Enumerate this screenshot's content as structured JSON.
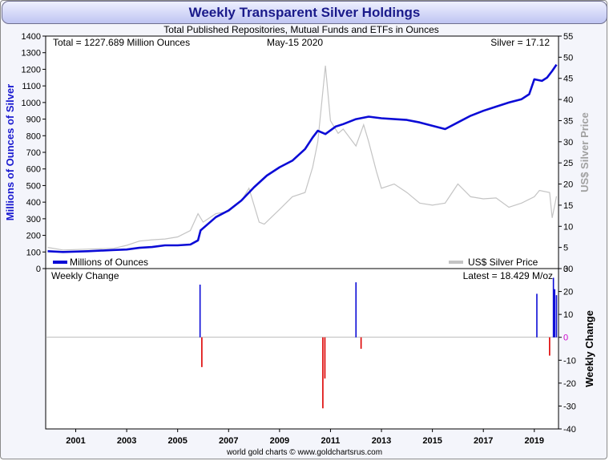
{
  "chart_data": [
    {
      "type": "line",
      "title": "Weekly Transparent Silver Holdings",
      "subtitle": "Total Published Repositories, Mutual Funds and ETFs in Ounces",
      "ylabel": "Millions of Ounces of Silver",
      "ylabel_right": "US$ Silver Price",
      "ylim": [
        0,
        1400
      ],
      "ylim_right": [
        0,
        55
      ],
      "y_ticks": [
        "0",
        "100",
        "200",
        "300",
        "400",
        "500",
        "600",
        "700",
        "800",
        "900",
        "1000",
        "1100",
        "1200",
        "1300",
        "1400"
      ],
      "y_ticks_right": [
        "0",
        "5",
        "10",
        "15",
        "20",
        "25",
        "30",
        "35",
        "40",
        "45",
        "50",
        "55"
      ],
      "x_ticks": [
        "2001",
        "2003",
        "2005",
        "2007",
        "2009",
        "2011",
        "2013",
        "2015",
        "2017",
        "2019"
      ],
      "annotations": {
        "total": "Total = 1227.689 Million Ounces",
        "date": "May-15  2020",
        "silver": "Silver = 17.12"
      },
      "legend": {
        "position": "bottom",
        "holdings": "Millions of Ounces",
        "price": "US$ Silver Price"
      },
      "grid": false,
      "series": [
        {
          "name": "Millions of Ounces",
          "color": "#0b0bd6",
          "x": [
            2000.4,
            2001,
            2002,
            2003,
            2003.5,
            2004,
            2004.5,
            2005,
            2005.5,
            2006,
            2006.3,
            2006.4,
            2007,
            2007.5,
            2008,
            2008.5,
            2009,
            2009.5,
            2010,
            2010.5,
            2010.8,
            2011,
            2011.3,
            2011.7,
            2012,
            2012.5,
            2013,
            2013.5,
            2014,
            2014.5,
            2015,
            2015.5,
            2016,
            2016.5,
            2017,
            2017.5,
            2018,
            2018.5,
            2019,
            2019.3,
            2019.5,
            2019.8,
            2020,
            2020.2,
            2020.37
          ],
          "values": [
            105,
            100,
            105,
            112,
            115,
            125,
            130,
            140,
            140,
            145,
            170,
            230,
            310,
            350,
            410,
            490,
            560,
            610,
            650,
            720,
            790,
            830,
            810,
            855,
            870,
            900,
            915,
            905,
            900,
            895,
            880,
            860,
            840,
            880,
            920,
            950,
            975,
            1000,
            1020,
            1050,
            1140,
            1130,
            1150,
            1190,
            1228
          ]
        },
        {
          "name": "US$ Silver Price",
          "color": "#c4c4c4",
          "axis": "right",
          "x": [
            2000.4,
            2001,
            2002,
            2003,
            2003.5,
            2004,
            2004.5,
            2005,
            2005.5,
            2006,
            2006.3,
            2006.5,
            2007,
            2007.5,
            2008,
            2008.3,
            2008.7,
            2008.9,
            2009.5,
            2010,
            2010.5,
            2010.8,
            2011.0,
            2011.3,
            2011.5,
            2011.8,
            2012,
            2012.5,
            2012.8,
            2013.0,
            2013.3,
            2013.5,
            2014,
            2014.5,
            2015,
            2015.5,
            2016,
            2016.5,
            2017,
            2017.5,
            2018,
            2018.5,
            2019,
            2019.5,
            2019.7,
            2020.1,
            2020.2,
            2020.37
          ],
          "values": [
            5.0,
            4.4,
            4.6,
            4.8,
            5.5,
            6.5,
            6.8,
            7.0,
            7.5,
            9.0,
            13.0,
            11.0,
            13.0,
            13.5,
            16.0,
            19.0,
            11.0,
            10.5,
            14.0,
            17.0,
            18.0,
            24.0,
            30.0,
            48.0,
            35.0,
            32.0,
            33.0,
            29.0,
            34.0,
            30.0,
            23.0,
            19.0,
            20.0,
            18.0,
            15.5,
            15.0,
            15.5,
            20.0,
            17.0,
            16.5,
            16.7,
            14.5,
            15.5,
            17.0,
            18.5,
            18.0,
            12.0,
            17.12
          ]
        }
      ]
    },
    {
      "type": "bar",
      "title": "Weekly Change",
      "ylabel": "Weekly Change",
      "ylim": [
        -40,
        30
      ],
      "y_ticks": [
        "30",
        "20",
        "10",
        "0",
        "-10",
        "-20",
        "-30",
        "-40"
      ],
      "x_ticks": [
        "2001",
        "2003",
        "2005",
        "2007",
        "2009",
        "2011",
        "2013",
        "2015",
        "2017",
        "2019"
      ],
      "latest": "Latest = 18.429 M/oz",
      "colors": {
        "positive": "#0b0bd6",
        "negative": "#dd0000",
        "zero_label": "#cc00cc"
      },
      "x": [
        2006.38,
        2006.45,
        2011.2,
        2011.28,
        2012.5,
        2012.7,
        2019.6,
        2020.1,
        2020.25,
        2020.3,
        2020.37
      ],
      "values": [
        23.0,
        -13.0,
        -31.0,
        -18.0,
        24.0,
        -5.0,
        19.0,
        -8.0,
        26.0,
        21.0,
        18.4
      ]
    }
  ],
  "footer": "world gold charts © www.goldchartsrus.com"
}
